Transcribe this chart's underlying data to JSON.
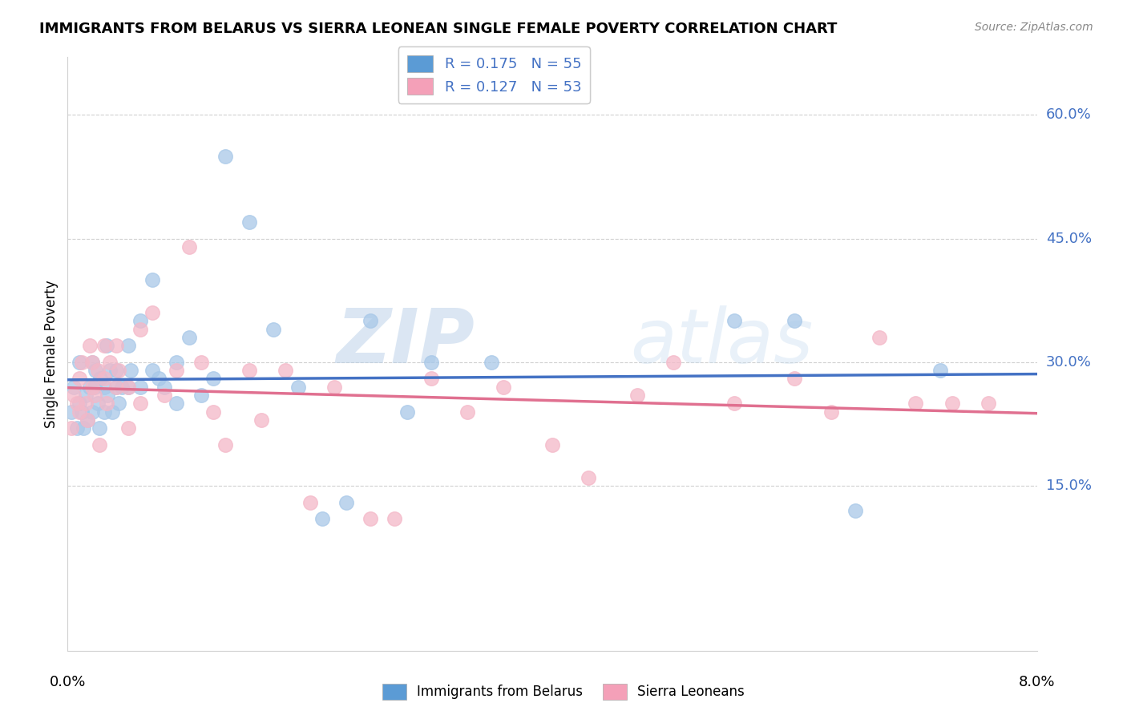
{
  "title": "IMMIGRANTS FROM BELARUS VS SIERRA LEONEAN SINGLE FEMALE POVERTY CORRELATION CHART",
  "source": "Source: ZipAtlas.com",
  "ylabel": "Single Female Poverty",
  "ytick_vals": [
    0.6,
    0.45,
    0.3,
    0.15
  ],
  "ytick_labels": [
    "60.0%",
    "45.0%",
    "30.0%",
    "15.0%"
  ],
  "xlim": [
    0.0,
    0.08
  ],
  "ylim": [
    -0.05,
    0.67
  ],
  "legend_label1": "R = 0.175   N = 55",
  "legend_label2": "R = 0.127   N = 53",
  "legend_bottom_label1": "Immigrants from Belarus",
  "legend_bottom_label2": "Sierra Leoneans",
  "blue_scatter_color": "#a8c8e8",
  "pink_scatter_color": "#f4b8c8",
  "blue_line_color": "#4472c4",
  "pink_line_color": "#e07090",
  "blue_legend_color": "#5b9bd5",
  "pink_legend_color": "#f4a0b8",
  "R_color": "#4472c4",
  "N_color": "#4472c4",
  "watermark_color": "#c8ddf0",
  "background_color": "#ffffff",
  "grid_color": "#d0d0d0",
  "blue_x": [
    0.0003,
    0.0005,
    0.0008,
    0.001,
    0.001,
    0.0012,
    0.0013,
    0.0015,
    0.0016,
    0.0018,
    0.002,
    0.002,
    0.0022,
    0.0023,
    0.0025,
    0.0026,
    0.0027,
    0.003,
    0.003,
    0.0032,
    0.0033,
    0.0035,
    0.0037,
    0.004,
    0.004,
    0.0042,
    0.0045,
    0.005,
    0.005,
    0.0052,
    0.006,
    0.006,
    0.007,
    0.007,
    0.0075,
    0.008,
    0.009,
    0.009,
    0.01,
    0.011,
    0.012,
    0.013,
    0.015,
    0.017,
    0.019,
    0.021,
    0.023,
    0.025,
    0.028,
    0.03,
    0.035,
    0.055,
    0.06,
    0.065,
    0.072
  ],
  "blue_y": [
    0.24,
    0.27,
    0.22,
    0.3,
    0.25,
    0.24,
    0.22,
    0.26,
    0.23,
    0.27,
    0.3,
    0.24,
    0.27,
    0.29,
    0.25,
    0.22,
    0.28,
    0.27,
    0.24,
    0.32,
    0.26,
    0.29,
    0.24,
    0.29,
    0.27,
    0.25,
    0.27,
    0.32,
    0.27,
    0.29,
    0.35,
    0.27,
    0.4,
    0.29,
    0.28,
    0.27,
    0.25,
    0.3,
    0.33,
    0.26,
    0.28,
    0.55,
    0.47,
    0.34,
    0.27,
    0.11,
    0.13,
    0.35,
    0.24,
    0.3,
    0.3,
    0.35,
    0.35,
    0.12,
    0.29
  ],
  "pink_x": [
    0.0003,
    0.0005,
    0.0008,
    0.001,
    0.001,
    0.0012,
    0.0015,
    0.0016,
    0.0018,
    0.002,
    0.002,
    0.0022,
    0.0025,
    0.0026,
    0.003,
    0.003,
    0.0032,
    0.0035,
    0.004,
    0.004,
    0.0042,
    0.005,
    0.005,
    0.006,
    0.006,
    0.007,
    0.008,
    0.009,
    0.01,
    0.011,
    0.012,
    0.013,
    0.015,
    0.016,
    0.018,
    0.02,
    0.022,
    0.025,
    0.027,
    0.03,
    0.033,
    0.036,
    0.04,
    0.043,
    0.047,
    0.05,
    0.055,
    0.06,
    0.063,
    0.067,
    0.07,
    0.073,
    0.076
  ],
  "pink_y": [
    0.22,
    0.26,
    0.25,
    0.28,
    0.24,
    0.3,
    0.25,
    0.23,
    0.32,
    0.3,
    0.27,
    0.26,
    0.29,
    0.2,
    0.32,
    0.28,
    0.25,
    0.3,
    0.32,
    0.27,
    0.29,
    0.27,
    0.22,
    0.34,
    0.25,
    0.36,
    0.26,
    0.29,
    0.44,
    0.3,
    0.24,
    0.2,
    0.29,
    0.23,
    0.29,
    0.13,
    0.27,
    0.11,
    0.11,
    0.28,
    0.24,
    0.27,
    0.2,
    0.16,
    0.26,
    0.3,
    0.25,
    0.28,
    0.24,
    0.33,
    0.25,
    0.25,
    0.25
  ],
  "watermark_zip": "ZIP",
  "watermark_atlas": "atlas"
}
